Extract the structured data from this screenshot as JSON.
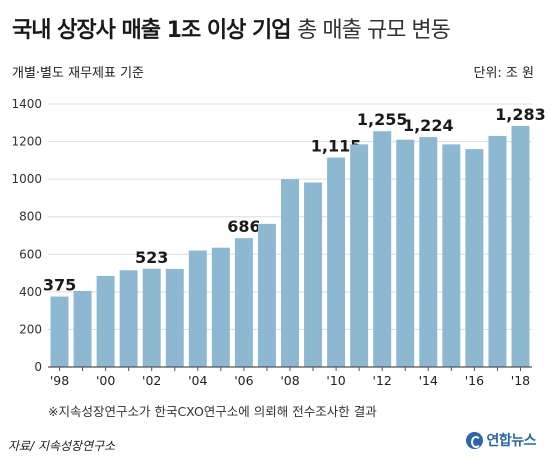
{
  "header": {
    "title_bold": "국내 상장사 매출 1조 이상 기업",
    "title_light": "총 매출 규모 변동",
    "basis": "개별·별도 재무제표 기준",
    "unit": "단위: 조 원"
  },
  "footnote": "※지속성장연구소가 한국CXO연구소에 의뢰해 전수조사한 결과",
  "source": "자료/ 지속성장연구소",
  "logo_text": "연합뉴스",
  "colors": {
    "bar": "#8db8d2",
    "axis": "#555555",
    "grid": "#dddddd"
  },
  "chart_data": {
    "type": "bar",
    "categories": [
      "'98",
      "'99",
      "'00",
      "'01",
      "'02",
      "'03",
      "'04",
      "'05",
      "'06",
      "'07",
      "'08",
      "'09",
      "'10",
      "'11",
      "'12",
      "'13",
      "'14",
      "'15",
      "'16",
      "'17",
      "'18"
    ],
    "tick_labels": [
      "'98",
      "'00",
      "'02",
      "'04",
      "'06",
      "'08",
      "'10",
      "'12",
      "'14",
      "'16",
      "'18"
    ],
    "values": [
      375,
      405,
      485,
      515,
      523,
      522,
      620,
      635,
      686,
      762,
      1000,
      982,
      1115,
      1185,
      1255,
      1210,
      1224,
      1185,
      1160,
      1230,
      1283
    ],
    "data_labels": [
      "375",
      "",
      "",
      "",
      "523",
      "",
      "",
      "",
      "686",
      "",
      "",
      "",
      "1,115",
      "",
      "1,255",
      "",
      "1,224",
      "",
      "",
      "",
      "1,283"
    ],
    "yticks": [
      "0",
      "200",
      "400",
      "600",
      "800",
      "1000",
      "1200",
      "1400"
    ],
    "ylim": [
      0,
      1400
    ],
    "grid": true,
    "title": "국내 상장사 매출 1조 이상 기업 총 매출 규모 변동",
    "ylabel": "단위: 조 원"
  }
}
